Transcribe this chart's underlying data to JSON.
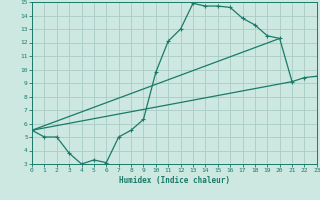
{
  "background_color": "#cce8e0",
  "grid_color": "#aaccc4",
  "line_color": "#1a7a6a",
  "xlabel": "Humidex (Indice chaleur)",
  "xmin": 0,
  "xmax": 23,
  "ymin": 3,
  "ymax": 15,
  "line1_x": [
    0,
    1,
    2,
    3,
    4,
    5,
    6,
    7,
    8,
    9,
    10,
    11,
    12,
    13,
    14,
    15,
    16,
    17,
    18,
    19,
    20,
    21,
    22,
    23
  ],
  "line1_y": [
    5.5,
    5.0,
    5.0,
    3.8,
    3.0,
    3.3,
    3.1,
    5.0,
    5.5,
    6.3,
    9.8,
    12.1,
    13.0,
    14.9,
    14.7,
    14.7,
    14.6,
    13.8,
    13.3,
    12.5,
    12.3,
    9.1,
    9.4,
    9.5
  ],
  "line2_x": [
    0,
    21
  ],
  "line2_y": [
    5.5,
    9.1
  ],
  "line3_x": [
    0,
    20
  ],
  "line3_y": [
    5.5,
    12.3
  ]
}
